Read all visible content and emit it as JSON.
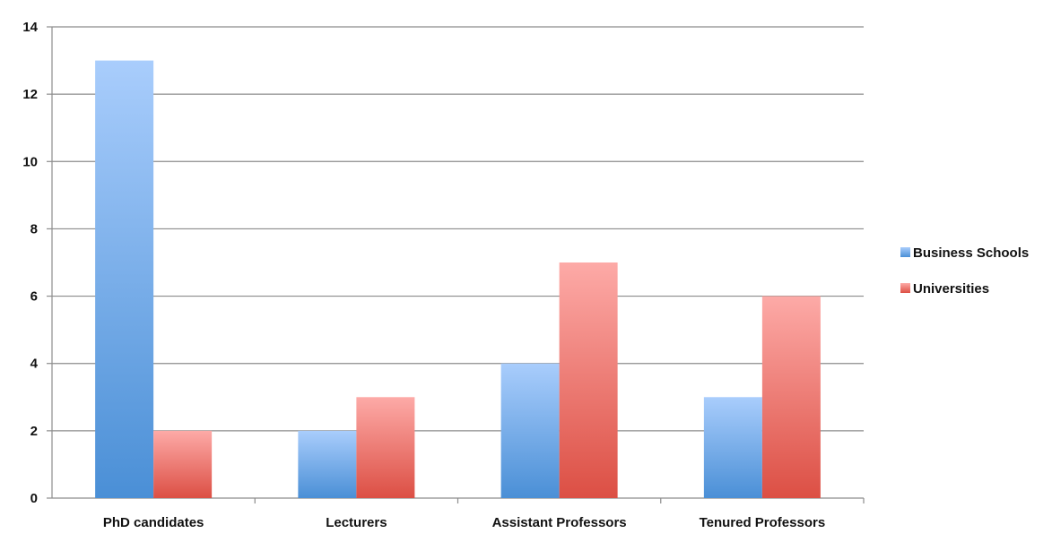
{
  "chart_data": {
    "type": "bar",
    "title": "",
    "xlabel": "",
    "ylabel": "",
    "categories": [
      "PhD candidates",
      "Lecturers",
      "Assistant Professors",
      "Tenured Professors"
    ],
    "series": [
      {
        "name": "Business Schools",
        "values": [
          13,
          2,
          4,
          3
        ],
        "color": "#5b9bd5",
        "color_light": "#a9cdfc",
        "color_dark": "#4a8fd6"
      },
      {
        "name": "Universities",
        "values": [
          2,
          3,
          7,
          6
        ],
        "color": "#e05a50",
        "color_light": "#fdaaa7",
        "color_dark": "#dc4f44"
      }
    ],
    "ylim": [
      0,
      14
    ],
    "yticks": [
      0,
      2,
      4,
      6,
      8,
      10,
      12,
      14
    ],
    "grid": true,
    "legend_position": "right"
  }
}
